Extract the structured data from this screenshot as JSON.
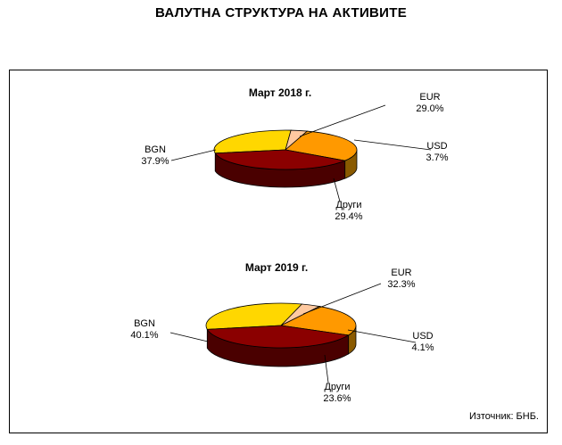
{
  "page": {
    "title": "ВАЛУТНА СТРУКТУРА НА АКТИВИТЕ",
    "source": "Източник: БНБ."
  },
  "colors": {
    "EUR": "#ffd700",
    "USD": "#ffc9a0",
    "Други": "#ff9900",
    "BGN": "#8b0000",
    "EUR_side": "#c2a500",
    "Други_side": "#8a5a00",
    "BGN_side": "#4a0000"
  },
  "chart_data": [
    {
      "type": "pie",
      "title": "Март 2018 г.",
      "slices": [
        {
          "name": "EUR",
          "value": 29.0,
          "label": "29.0%"
        },
        {
          "name": "USD",
          "value": 3.7,
          "label": "3.7%"
        },
        {
          "name": "Други",
          "value": 29.4,
          "label": "29.4%"
        },
        {
          "name": "BGN",
          "value": 37.9,
          "label": "37.9%"
        }
      ]
    },
    {
      "type": "pie",
      "title": "Март 2019 г.",
      "slices": [
        {
          "name": "EUR",
          "value": 32.3,
          "label": "32.3%"
        },
        {
          "name": "USD",
          "value": 4.1,
          "label": "4.1%"
        },
        {
          "name": "Други",
          "value": 23.6,
          "label": "23.6%"
        },
        {
          "name": "BGN",
          "value": 40.1,
          "label": "40.1%"
        }
      ]
    }
  ]
}
